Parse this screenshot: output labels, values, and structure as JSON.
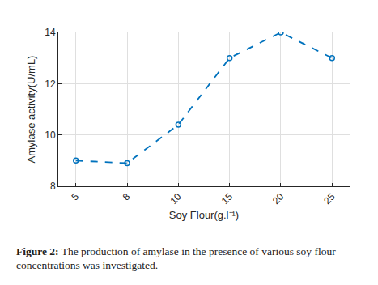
{
  "chart_data": {
    "type": "line",
    "x_label": "Soy Flour(g.l⁻¹)",
    "y_label": "Amylase activity(U/mL)",
    "caption": "Figure 2: The production of amylase in the presence of various soy flour concentrations was investigated.",
    "categories": [
      "5",
      "8",
      "10",
      "15",
      "20",
      "25"
    ],
    "values": [
      9,
      8.9,
      10.4,
      13,
      14,
      13
    ],
    "color": "#0072bd",
    "marker": "circle",
    "line_style": "dash",
    "ylim": [
      8,
      14
    ],
    "yticks": [
      8,
      10,
      12,
      14
    ],
    "grid": true
  }
}
